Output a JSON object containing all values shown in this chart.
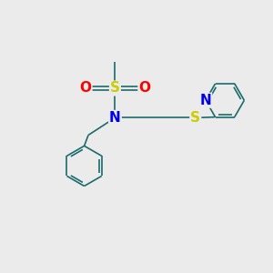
{
  "background_color": "#ebebeb",
  "atom_colors": {
    "C": "#1a6b6b",
    "N": "#0000ee",
    "O": "#ff0000",
    "S": "#cccc00"
  },
  "bond_color": "#1a6b6b",
  "bond_width": 1.2,
  "font_size_S": 11,
  "font_size_N": 11,
  "font_size_O": 11
}
